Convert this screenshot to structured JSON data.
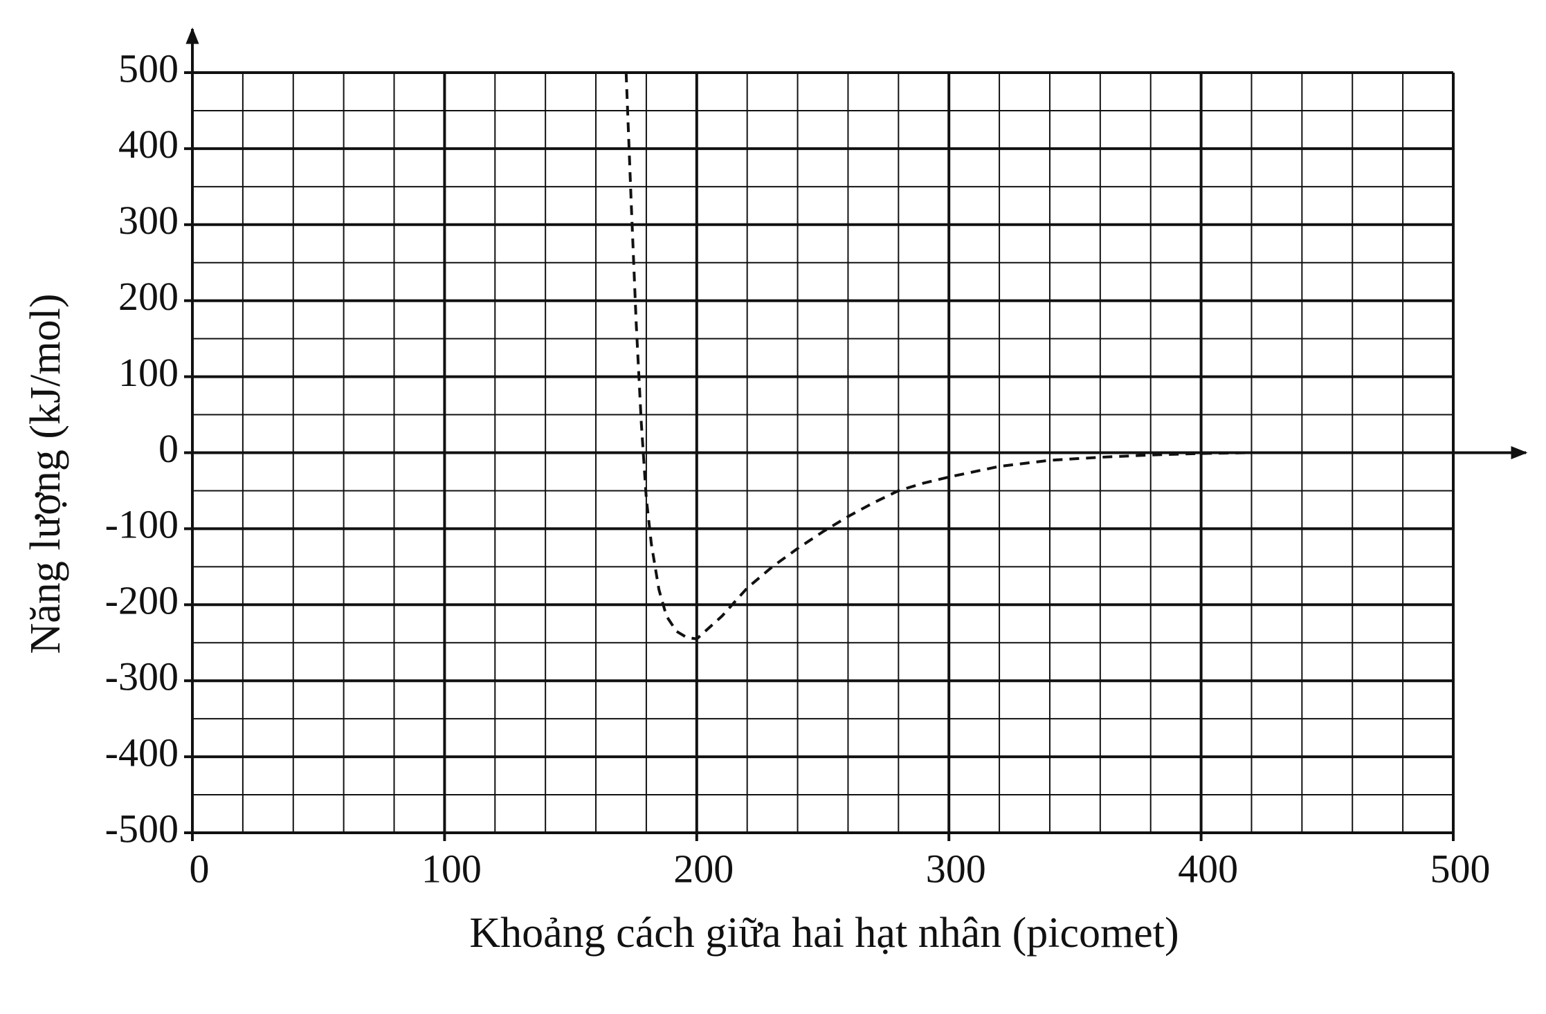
{
  "chart_data": {
    "type": "line",
    "x_label": "Khoảng cách giữa hai hạt nhân (picomet)",
    "y_label": "Năng lượng (kJ/mol)",
    "x": [
      172,
      174,
      176,
      178,
      180,
      182,
      185,
      188,
      192,
      196,
      200,
      210,
      220,
      230,
      240,
      250,
      260,
      270,
      280,
      290,
      300,
      320,
      340,
      360,
      380,
      400,
      420,
      440
    ],
    "series": [
      {
        "color": "#111111",
        "dashed": true,
        "values": [
          500,
          330,
          170,
          40,
          -60,
          -120,
          -180,
          -215,
          -235,
          -243,
          -245,
          -215,
          -178,
          -150,
          -126,
          -104,
          -84,
          -66,
          -50,
          -40,
          -32,
          -18,
          -10,
          -6,
          -3,
          -1,
          0,
          0
        ]
      }
    ],
    "xlim": [
      0,
      500
    ],
    "xticks": [
      0,
      100,
      200,
      300,
      400,
      500
    ],
    "ylim": [
      -500,
      500
    ],
    "yticks": [
      -500,
      -400,
      -300,
      -200,
      -100,
      0,
      100,
      200,
      300,
      400,
      500
    ],
    "x_minor_ticks": [
      20,
      40,
      60,
      80,
      120,
      140,
      160,
      180,
      220,
      240,
      260,
      280,
      320,
      340,
      360,
      380,
      420,
      440,
      460,
      480
    ],
    "y_minor_ticks": [
      -450,
      -350,
      -250,
      -150,
      -50,
      50,
      150,
      250,
      350,
      450
    ],
    "grid": true
  }
}
